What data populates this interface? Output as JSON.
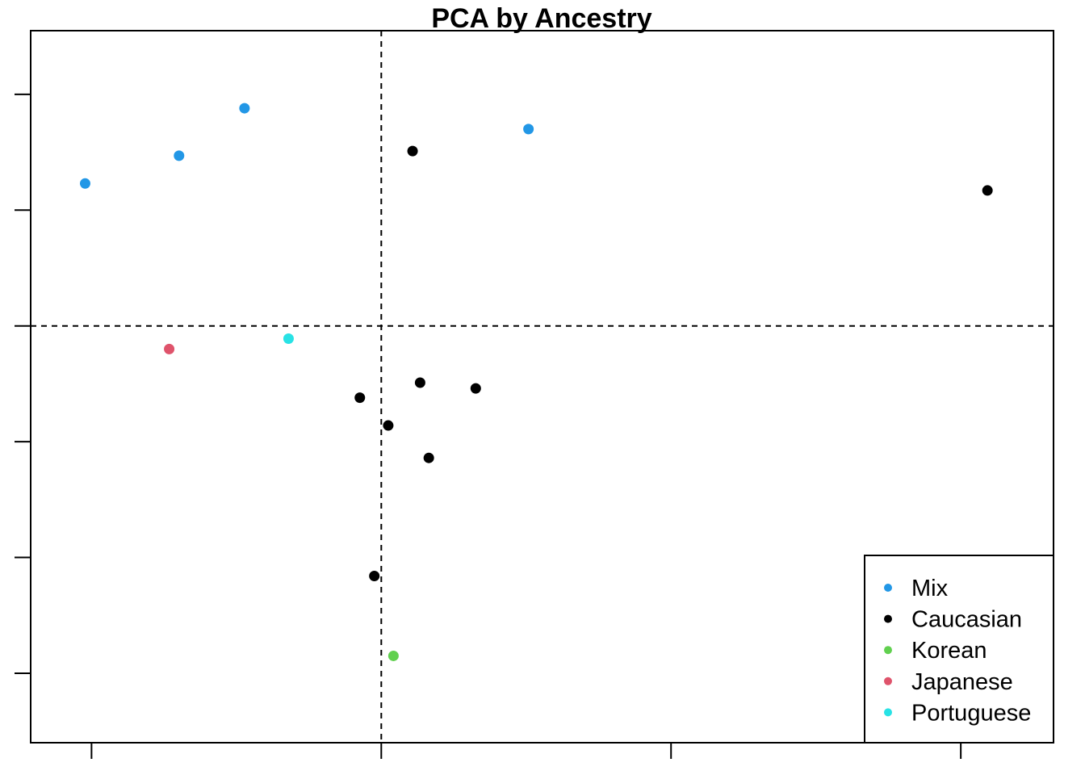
{
  "chart_data": {
    "type": "scatter",
    "title": "PCA by Ancestry",
    "xlabel": "",
    "ylabel": "",
    "xlim": [
      -0.605,
      1.16
    ],
    "ylim": [
      -0.36,
      0.255
    ],
    "x_ticks": [
      -0.5,
      0,
      0.5,
      1
    ],
    "y_ticks": [
      -0.3,
      -0.2,
      -0.1,
      0,
      0.1,
      0.2
    ],
    "tick_labels_shown": false,
    "reference_lines": [
      {
        "orientation": "vertical",
        "value": 0,
        "style": "dashed"
      },
      {
        "orientation": "horizontal",
        "value": 0,
        "style": "dashed"
      }
    ],
    "legend_position": "bottom-right",
    "series": [
      {
        "name": "Mix",
        "color": "#2297E6",
        "points": [
          {
            "x": -0.511,
            "y": 0.123
          },
          {
            "x": -0.349,
            "y": 0.147
          },
          {
            "x": -0.236,
            "y": 0.188
          },
          {
            "x": 0.254,
            "y": 0.17
          }
        ]
      },
      {
        "name": "Caucasian",
        "color": "#000000",
        "points": [
          {
            "x": 0.054,
            "y": 0.151
          },
          {
            "x": 1.046,
            "y": 0.117
          },
          {
            "x": -0.037,
            "y": -0.062
          },
          {
            "x": 0.067,
            "y": -0.049
          },
          {
            "x": 0.163,
            "y": -0.054
          },
          {
            "x": 0.012,
            "y": -0.086
          },
          {
            "x": 0.082,
            "y": -0.114
          },
          {
            "x": -0.012,
            "y": -0.216
          }
        ]
      },
      {
        "name": "Korean",
        "color": "#61D04F",
        "points": [
          {
            "x": 0.021,
            "y": -0.285
          }
        ]
      },
      {
        "name": "Japanese",
        "color": "#DF536B",
        "points": [
          {
            "x": -0.366,
            "y": -0.02
          }
        ]
      },
      {
        "name": "Portuguese",
        "color": "#28E2E5",
        "points": [
          {
            "x": -0.16,
            "y": -0.011
          }
        ]
      }
    ]
  }
}
